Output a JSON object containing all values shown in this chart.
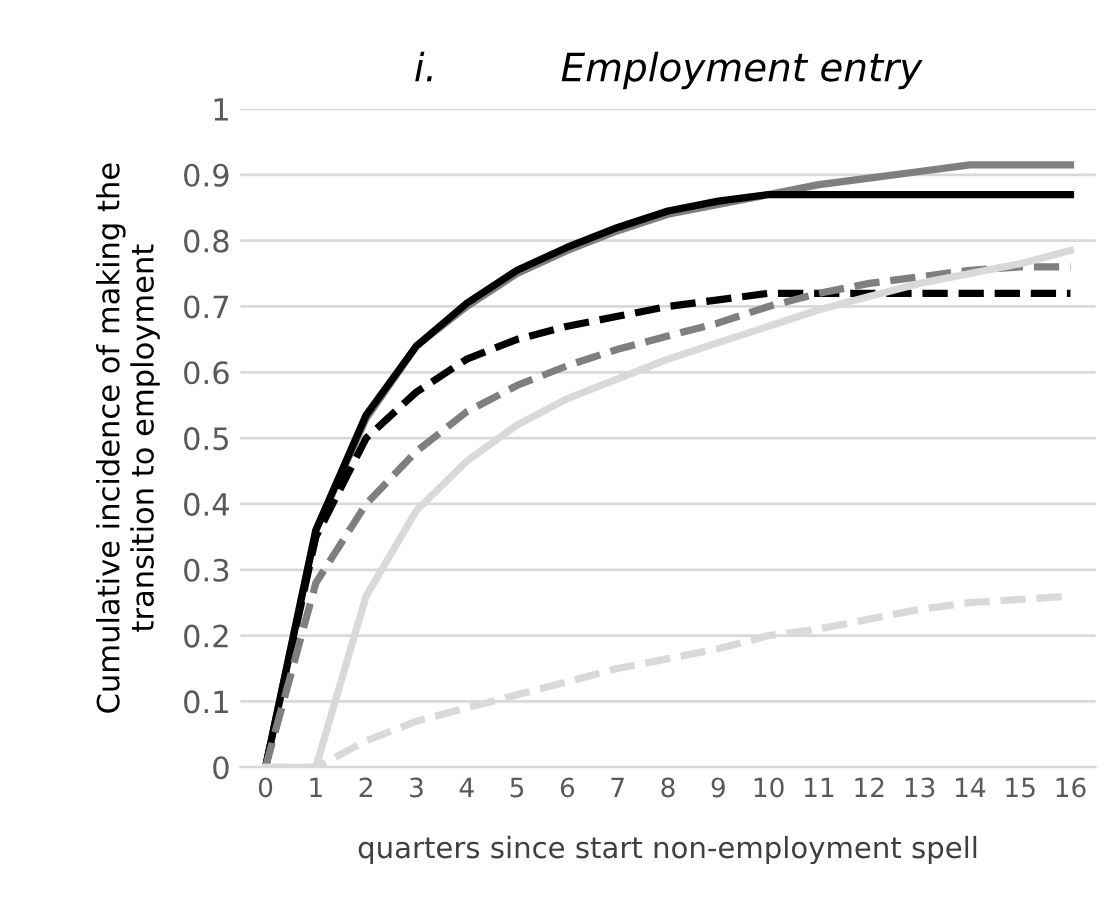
{
  "chart_data": {
    "type": "line",
    "title": "i.          Employment entry",
    "xlabel": "quarters since start non-employment spell",
    "ylabel": "Cumulative incidence of making the\ntransition to employment",
    "categories": [
      "0",
      "1",
      "2",
      "3",
      "4",
      "5",
      "6",
      "7",
      "8",
      "9",
      "10",
      "11",
      "12",
      "13",
      "14",
      "15",
      "16"
    ],
    "ylim": [
      0,
      1
    ],
    "yticks": [
      0,
      0.1,
      0.2,
      0.3,
      0.4,
      0.5,
      0.6,
      0.7,
      0.8,
      0.9,
      1
    ],
    "grid": "y",
    "marker": "none",
    "series": [
      {
        "color": "#7f7f7f",
        "line_style": "solid",
        "values": [
          0,
          0.36,
          0.53,
          0.64,
          0.7,
          0.75,
          0.785,
          0.815,
          0.84,
          0.855,
          0.87,
          0.885,
          0.895,
          0.905,
          0.915,
          0.915,
          0.915
        ]
      },
      {
        "color": "#000000",
        "line_style": "solid",
        "values": [
          0,
          0.36,
          0.535,
          0.64,
          0.705,
          0.755,
          0.79,
          0.82,
          0.845,
          0.86,
          0.87,
          0.87,
          0.87,
          0.87,
          0.87,
          0.87,
          0.87
        ]
      },
      {
        "color": "#000000",
        "line_style": "dashed",
        "values": [
          0,
          0.35,
          0.5,
          0.57,
          0.62,
          0.65,
          0.67,
          0.685,
          0.7,
          0.71,
          0.72,
          0.72,
          0.72,
          0.72,
          0.72,
          0.72,
          0.72
        ]
      },
      {
        "color": "#7f7f7f",
        "line_style": "dashed",
        "values": [
          0,
          0.28,
          0.4,
          0.48,
          0.54,
          0.58,
          0.61,
          0.635,
          0.655,
          0.675,
          0.7,
          0.72,
          0.735,
          0.745,
          0.755,
          0.76,
          0.76
        ]
      },
      {
        "color": "#d9d9d9",
        "line_style": "solid",
        "values": [
          0,
          0,
          0.26,
          0.39,
          0.465,
          0.52,
          0.56,
          0.59,
          0.62,
          0.645,
          0.67,
          0.695,
          0.715,
          0.735,
          0.75,
          0.765,
          0.785
        ]
      },
      {
        "color": "#d9d9d9",
        "line_style": "dashed",
        "values": [
          0,
          0,
          0.04,
          0.07,
          0.09,
          0.11,
          0.13,
          0.15,
          0.165,
          0.18,
          0.2,
          0.21,
          0.225,
          0.24,
          0.25,
          0.255,
          0.26
        ]
      }
    ]
  }
}
